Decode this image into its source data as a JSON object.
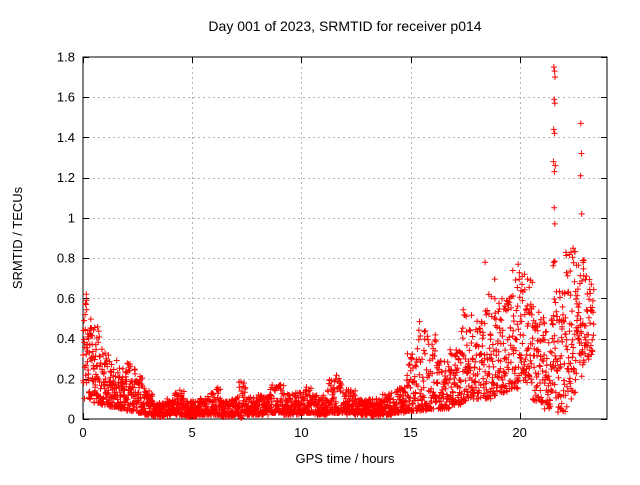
{
  "window": {
    "background": "#ffffff"
  },
  "chart_data": {
    "type": "scatter",
    "title": "Day 001 of 2023, SRMTID for receiver p014",
    "xlabel": "GPS time / hours",
    "ylabel": "SRMTID / TECUs",
    "xlim": [
      0,
      24
    ],
    "ylim": [
      0,
      1.8
    ],
    "xticks": [
      [
        0,
        "0"
      ],
      [
        5,
        "5"
      ],
      [
        10,
        "10"
      ],
      [
        15,
        "15"
      ],
      [
        20,
        "20"
      ]
    ],
    "yticks": [
      [
        0,
        "0"
      ],
      [
        0.2,
        "0.2"
      ],
      [
        0.4,
        "0.4"
      ],
      [
        0.6,
        "0.6"
      ],
      [
        0.8,
        "0.8"
      ],
      [
        1,
        "1"
      ],
      [
        1.2,
        "1.2"
      ],
      [
        1.4,
        "1.4"
      ],
      [
        1.6,
        "1.6"
      ],
      [
        1.8,
        "1.8"
      ]
    ],
    "grid": true,
    "legend": "none",
    "marker": "plus",
    "marker_color": "#ff0000",
    "grid_color": "#b4b4b4",
    "axis_color": "#000000",
    "series": [
      {
        "name": "SRMTID",
        "density_bands": [
          [
            0.0,
            0.2,
            22,
            0.1,
            0.6,
            1.0
          ],
          [
            0.2,
            0.5,
            40,
            0.09,
            0.52,
            1.3
          ],
          [
            0.5,
            0.8,
            40,
            0.08,
            0.46,
            1.4
          ],
          [
            0.8,
            1.2,
            50,
            0.07,
            0.35,
            1.6
          ],
          [
            1.2,
            1.6,
            52,
            0.06,
            0.3,
            1.7
          ],
          [
            1.6,
            2.0,
            52,
            0.05,
            0.26,
            1.7
          ],
          [
            2.0,
            2.4,
            52,
            0.04,
            0.28,
            1.9
          ],
          [
            2.4,
            2.8,
            52,
            0.03,
            0.22,
            1.9
          ],
          [
            2.8,
            3.2,
            52,
            0.02,
            0.14,
            1.8
          ],
          [
            3.2,
            3.7,
            60,
            0.01,
            0.09,
            1.4
          ],
          [
            3.7,
            4.2,
            60,
            0.015,
            0.1,
            1.4
          ],
          [
            4.2,
            4.7,
            60,
            0.02,
            0.15,
            1.9
          ],
          [
            4.7,
            5.2,
            60,
            0.01,
            0.09,
            1.4
          ],
          [
            5.2,
            5.7,
            60,
            0.02,
            0.11,
            1.6
          ],
          [
            5.7,
            6.3,
            70,
            0.02,
            0.16,
            2.0
          ],
          [
            6.3,
            6.9,
            70,
            0.01,
            0.1,
            1.4
          ],
          [
            6.9,
            7.15,
            30,
            0.02,
            0.12,
            1.5
          ],
          [
            7.15,
            7.45,
            35,
            0.01,
            0.19,
            2.0
          ],
          [
            7.45,
            7.95,
            60,
            0.02,
            0.11,
            1.5
          ],
          [
            7.95,
            8.55,
            70,
            0.02,
            0.12,
            1.5
          ],
          [
            8.55,
            9.2,
            75,
            0.03,
            0.17,
            1.9
          ],
          [
            9.2,
            9.9,
            80,
            0.02,
            0.13,
            1.6
          ],
          [
            9.9,
            10.6,
            80,
            0.03,
            0.16,
            1.9
          ],
          [
            10.6,
            11.2,
            70,
            0.02,
            0.12,
            1.6
          ],
          [
            11.2,
            11.9,
            80,
            0.03,
            0.22,
            2.2
          ],
          [
            11.9,
            12.5,
            70,
            0.02,
            0.15,
            1.9
          ],
          [
            12.5,
            13.1,
            70,
            0.02,
            0.1,
            1.4
          ],
          [
            13.1,
            13.7,
            70,
            0.015,
            0.1,
            1.4
          ],
          [
            13.7,
            14.3,
            70,
            0.02,
            0.13,
            1.6
          ],
          [
            14.3,
            14.8,
            60,
            0.03,
            0.16,
            1.7
          ],
          [
            14.8,
            15.3,
            56,
            0.04,
            0.33,
            2.2
          ],
          [
            15.3,
            15.8,
            56,
            0.04,
            0.5,
            2.5
          ],
          [
            15.8,
            16.2,
            45,
            0.05,
            0.45,
            2.3
          ],
          [
            16.2,
            16.8,
            65,
            0.05,
            0.3,
            1.9
          ],
          [
            16.8,
            17.3,
            58,
            0.07,
            0.35,
            1.8
          ],
          [
            17.3,
            17.8,
            58,
            0.09,
            0.55,
            2.1
          ],
          [
            17.8,
            18.4,
            66,
            0.1,
            0.5,
            1.7
          ],
          [
            18.4,
            18.9,
            56,
            0.1,
            0.78,
            1.9
          ],
          [
            18.9,
            19.5,
            66,
            0.13,
            0.6,
            1.6
          ],
          [
            19.5,
            20.1,
            66,
            0.15,
            0.78,
            1.7
          ],
          [
            20.1,
            20.6,
            56,
            0.18,
            0.72,
            1.4
          ],
          [
            20.6,
            21.1,
            56,
            0.08,
            0.6,
            1.4
          ],
          [
            21.1,
            21.5,
            45,
            0.05,
            0.5,
            1.4
          ],
          [
            21.5,
            21.7,
            24,
            0.1,
            0.8,
            1.1
          ],
          [
            21.7,
            22.1,
            48,
            0.03,
            0.75,
            1.3
          ],
          [
            22.1,
            22.6,
            58,
            0.06,
            0.85,
            1.3
          ],
          [
            22.6,
            23.0,
            48,
            0.2,
            0.8,
            1.1
          ],
          [
            23.0,
            23.4,
            38,
            0.28,
            0.72,
            1.0
          ]
        ],
        "outlier_points": [
          [
            0.15,
            0.62
          ],
          [
            0.17,
            0.59
          ],
          [
            7.25,
            0.005
          ],
          [
            13.3,
            0.01
          ],
          [
            21.57,
            1.75
          ],
          [
            21.6,
            1.73
          ],
          [
            21.62,
            1.7
          ],
          [
            21.58,
            1.59
          ],
          [
            21.61,
            1.57
          ],
          [
            21.56,
            1.44
          ],
          [
            21.6,
            1.42
          ],
          [
            21.55,
            1.28
          ],
          [
            21.63,
            1.26
          ],
          [
            21.59,
            1.23
          ],
          [
            21.58,
            1.05
          ],
          [
            21.61,
            0.97
          ],
          [
            22.8,
            1.47
          ],
          [
            22.83,
            1.32
          ],
          [
            22.79,
            1.21
          ],
          [
            22.84,
            1.02
          ]
        ]
      }
    ]
  }
}
